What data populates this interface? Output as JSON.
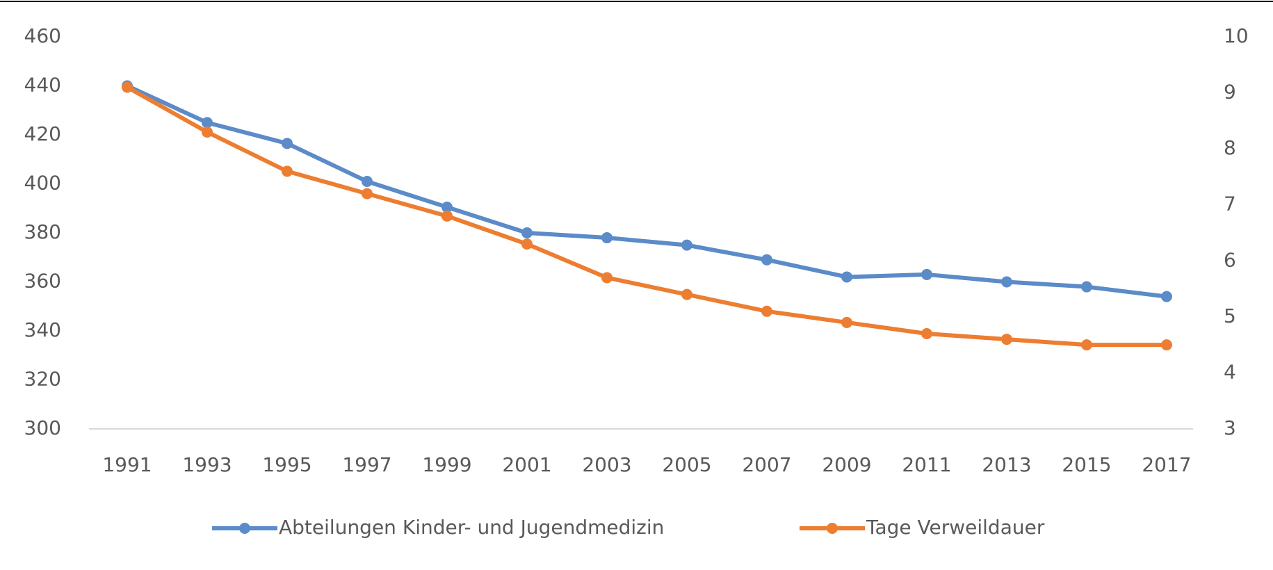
{
  "chart_data": {
    "type": "line",
    "categories": [
      "1991",
      "1993",
      "1995",
      "1997",
      "1999",
      "2001",
      "2003",
      "2005",
      "2007",
      "2009",
      "2011",
      "2013",
      "2015",
      "2017"
    ],
    "series": [
      {
        "name": "Abteilungen Kinder- und Jugendmedizin",
        "color": "#5b8bc8",
        "values": [
          440,
          425,
          416.5,
          401,
          390.5,
          380,
          378,
          375,
          369,
          362,
          363,
          360,
          358,
          354
        ]
      },
      {
        "name": "Tage Verweildauer",
        "color": "#ed7d31",
        "axis": "y2",
        "values": [
          9.1,
          8.3,
          7.6,
          7.2,
          6.8,
          6.3,
          5.7,
          5.4,
          5.1,
          4.9,
          4.7,
          4.6,
          4.5,
          4.5
        ]
      }
    ],
    "ylim": [
      300,
      460
    ],
    "yticks": [
      300,
      320,
      340,
      360,
      380,
      400,
      420,
      440,
      460
    ],
    "y2lim": [
      3,
      10
    ],
    "y2ticks": [
      3,
      4,
      5,
      6,
      7,
      8,
      9,
      10
    ],
    "grid": false,
    "legend": "bottom"
  }
}
